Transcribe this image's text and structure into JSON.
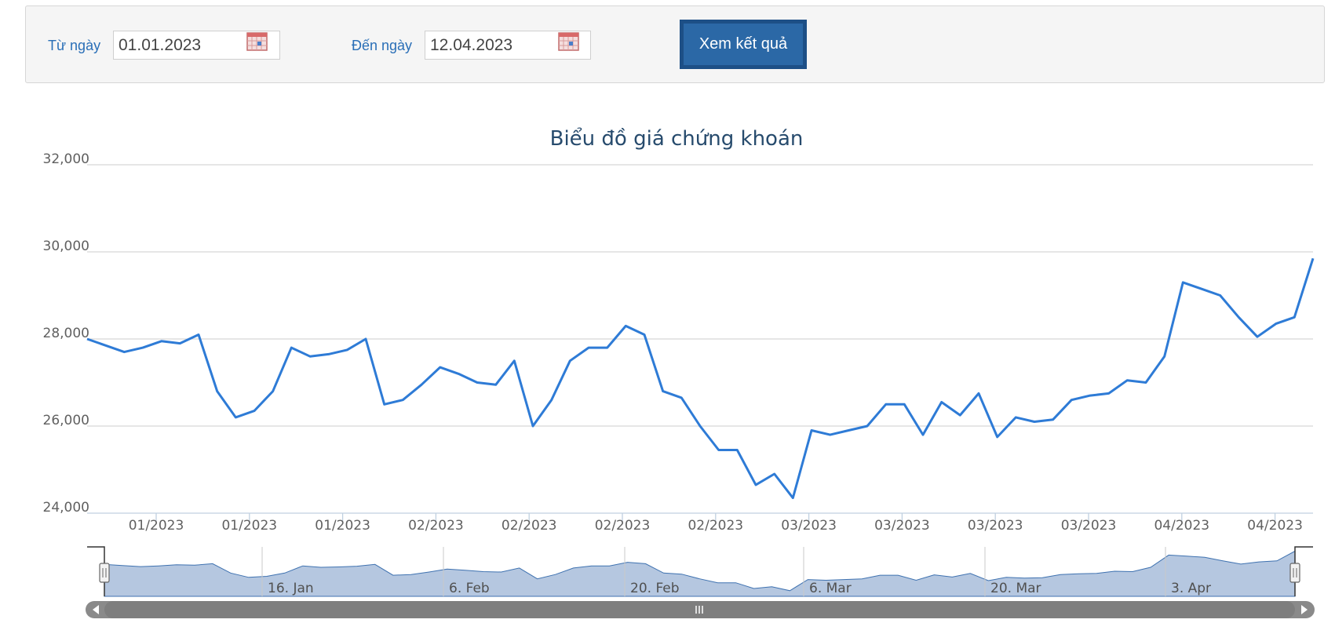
{
  "filter": {
    "from_label": "Từ ngày",
    "from_value": "01.01.2023",
    "to_label": "Đến ngày",
    "to_value": "12.04.2023",
    "submit_label": "Xem kết quả"
  },
  "colors": {
    "accent": "#2b68a6",
    "label": "#2a6fb7",
    "line": "#2e7bd6",
    "navigator_fill": "#b5c7e0",
    "scrollbar": "#8a8a8a"
  },
  "icons": {
    "calendar": "calendar-icon",
    "navigator_handle": "grip-handle-icon",
    "scroll_left": "arrow-left-icon",
    "scroll_right": "arrow-right-icon",
    "scroll_grip": "grip-icon"
  },
  "chart_data": {
    "type": "line",
    "title": "Biểu đồ giá chứng khoán",
    "xlabel": "",
    "ylabel": "",
    "ylim": [
      24000,
      32000
    ],
    "y_ticks": [
      24000,
      26000,
      28000,
      30000,
      32000
    ],
    "y_tick_labels": [
      "24,000",
      "26,000",
      "28,000",
      "30,000",
      "32,000"
    ],
    "x_tick_labels": [
      "01/2023",
      "01/2023",
      "01/2023",
      "02/2023",
      "02/2023",
      "02/2023",
      "02/2023",
      "03/2023",
      "03/2023",
      "03/2023",
      "03/2023",
      "04/2023",
      "04/2023"
    ],
    "grid": true,
    "legend": "none",
    "series": [
      {
        "values": [
          28000,
          27850,
          27700,
          27800,
          27950,
          27900,
          28100,
          26800,
          26200,
          26350,
          26800,
          27800,
          27600,
          27650,
          27750,
          28000,
          26500,
          26600,
          26950,
          27350,
          27200,
          27000,
          26950,
          27500,
          26000,
          26600,
          27500,
          27800,
          27800,
          28300,
          28100,
          26800,
          26650,
          26000,
          25450,
          25450,
          24650,
          24900,
          24350,
          25900,
          25800,
          25900,
          26000,
          26500,
          26500,
          25800,
          26550,
          26250,
          26750,
          25750,
          26200,
          26100,
          26150,
          26600,
          26700,
          26750,
          27050,
          27000,
          27600,
          29300,
          29150,
          29000,
          28500,
          28050,
          28350,
          28500,
          29850
        ]
      }
    ],
    "navigator": {
      "labels": [
        "16. Jan",
        "6. Feb",
        "20. Feb",
        "6. Mar",
        "20. Mar",
        "3. Apr"
      ]
    }
  }
}
